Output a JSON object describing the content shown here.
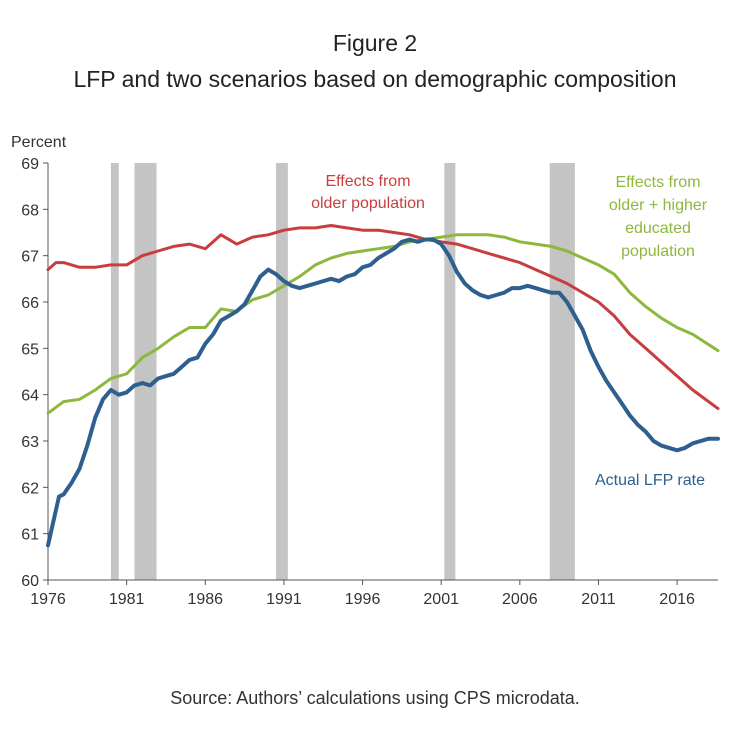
{
  "header": {
    "figure_label": "Figure 2",
    "title": "LFP and two scenarios based on demographic composition"
  },
  "footer": {
    "source": "Source: Authors’ calculations using CPS microdata."
  },
  "colors": {
    "red": "#c83d3d",
    "green": "#8cb83e",
    "blue": "#2e5f8e",
    "recession": "#c4c4c4",
    "axis": "#555555"
  },
  "chart_data": {
    "type": "line",
    "title": "LFP and two scenarios based on demographic composition",
    "ylabel": "Percent",
    "xlabel": "",
    "xlim": [
      1976,
      2018.6
    ],
    "ylim": [
      60,
      69
    ],
    "grid": false,
    "x_ticks": [
      "1976",
      "1981",
      "1986",
      "1991",
      "1996",
      "2001",
      "2006",
      "2011",
      "2016"
    ],
    "y_ticks": [
      "60",
      "61",
      "62",
      "63",
      "64",
      "65",
      "66",
      "67",
      "68",
      "69"
    ],
    "recessions": [
      [
        1980.0,
        1980.5
      ],
      [
        1981.5,
        1982.9
      ],
      [
        1990.5,
        1991.25
      ],
      [
        2001.2,
        2001.9
      ],
      [
        2007.9,
        2009.5
      ]
    ],
    "annotations": [
      {
        "series": "red",
        "lines": [
          "Effects from",
          "older population"
        ]
      },
      {
        "series": "green",
        "lines": [
          "Effects from",
          "older + higher",
          "educated",
          "population"
        ]
      },
      {
        "series": "blue",
        "lines": [
          "Actual LFP rate"
        ]
      }
    ],
    "series": [
      {
        "key": "red",
        "x": [
          1976,
          1976.5,
          1977,
          1978,
          1979,
          1980,
          1981,
          1982,
          1983,
          1984,
          1985,
          1986,
          1987,
          1988,
          1989,
          1990,
          1991,
          1992,
          1993,
          1994,
          1995,
          1996,
          1997,
          1998,
          1999,
          2000,
          2001,
          2002,
          2003,
          2004,
          2005,
          2006,
          2007,
          2008,
          2009,
          2010,
          2011,
          2012,
          2013,
          2014,
          2015,
          2016,
          2017,
          2018.6
        ],
        "y": [
          66.7,
          66.85,
          66.85,
          66.75,
          66.75,
          66.8,
          66.8,
          67.0,
          67.1,
          67.2,
          67.25,
          67.15,
          67.45,
          67.25,
          67.4,
          67.45,
          67.55,
          67.6,
          67.6,
          67.65,
          67.6,
          67.55,
          67.55,
          67.5,
          67.45,
          67.35,
          67.3,
          67.25,
          67.15,
          67.05,
          66.95,
          66.85,
          66.7,
          66.55,
          66.4,
          66.2,
          66.0,
          65.7,
          65.3,
          65.0,
          64.7,
          64.4,
          64.1,
          63.7
        ]
      },
      {
        "key": "green",
        "x": [
          1976,
          1977,
          1978,
          1979,
          1980,
          1981,
          1982,
          1983,
          1984,
          1985,
          1986,
          1987,
          1988,
          1989,
          1990,
          1991,
          1992,
          1993,
          1994,
          1995,
          1996,
          1997,
          1998,
          1999,
          2000,
          2001,
          2002,
          2003,
          2004,
          2005,
          2006,
          2007,
          2008,
          2009,
          2010,
          2011,
          2012,
          2013,
          2014,
          2015,
          2016,
          2017,
          2018.6
        ],
        "y": [
          63.6,
          63.85,
          63.9,
          64.1,
          64.35,
          64.45,
          64.8,
          65.0,
          65.25,
          65.45,
          65.45,
          65.85,
          65.8,
          66.05,
          66.15,
          66.35,
          66.55,
          66.8,
          66.95,
          67.05,
          67.1,
          67.15,
          67.2,
          67.3,
          67.35,
          67.4,
          67.45,
          67.45,
          67.45,
          67.4,
          67.3,
          67.25,
          67.2,
          67.1,
          66.95,
          66.8,
          66.6,
          66.2,
          65.9,
          65.65,
          65.45,
          65.3,
          64.95
        ]
      },
      {
        "key": "blue",
        "x": [
          1976,
          1976.3,
          1976.7,
          1977,
          1977.5,
          1978,
          1978.5,
          1979,
          1979.5,
          1980,
          1980.5,
          1981,
          1981.5,
          1982,
          1982.5,
          1983,
          1983.5,
          1984,
          1984.5,
          1985,
          1985.5,
          1986,
          1986.5,
          1987,
          1987.5,
          1988,
          1988.5,
          1989,
          1989.5,
          1990,
          1990.5,
          1991,
          1991.5,
          1992,
          1992.5,
          1993,
          1993.5,
          1994,
          1994.5,
          1995,
          1995.5,
          1996,
          1996.5,
          1997,
          1997.5,
          1998,
          1998.5,
          1999,
          1999.5,
          2000,
          2000.5,
          2001,
          2001.5,
          2002,
          2002.5,
          2003,
          2003.5,
          2004,
          2004.5,
          2005,
          2005.5,
          2006,
          2006.5,
          2007,
          2007.5,
          2008,
          2008.5,
          2009,
          2009.5,
          2010,
          2010.5,
          2011,
          2011.5,
          2012,
          2012.5,
          2013,
          2013.5,
          2014,
          2014.5,
          2015,
          2015.5,
          2016,
          2016.5,
          2017,
          2017.5,
          2018,
          2018.6
        ],
        "y": [
          60.75,
          61.2,
          61.8,
          61.85,
          62.1,
          62.4,
          62.9,
          63.5,
          63.9,
          64.1,
          64.0,
          64.05,
          64.2,
          64.25,
          64.2,
          64.35,
          64.4,
          64.45,
          64.6,
          64.75,
          64.8,
          65.1,
          65.3,
          65.6,
          65.7,
          65.8,
          65.95,
          66.25,
          66.55,
          66.7,
          66.6,
          66.45,
          66.35,
          66.3,
          66.35,
          66.4,
          66.45,
          66.5,
          66.45,
          66.55,
          66.6,
          66.75,
          66.8,
          66.95,
          67.05,
          67.15,
          67.3,
          67.35,
          67.3,
          67.35,
          67.35,
          67.25,
          67.0,
          66.65,
          66.4,
          66.25,
          66.15,
          66.1,
          66.15,
          66.2,
          66.3,
          66.3,
          66.35,
          66.3,
          66.25,
          66.2,
          66.2,
          66.0,
          65.7,
          65.4,
          64.95,
          64.6,
          64.3,
          64.05,
          63.8,
          63.55,
          63.35,
          63.2,
          63.0,
          62.9,
          62.85,
          62.8,
          62.85,
          62.95,
          63.0,
          63.05,
          63.05
        ]
      }
    ]
  }
}
